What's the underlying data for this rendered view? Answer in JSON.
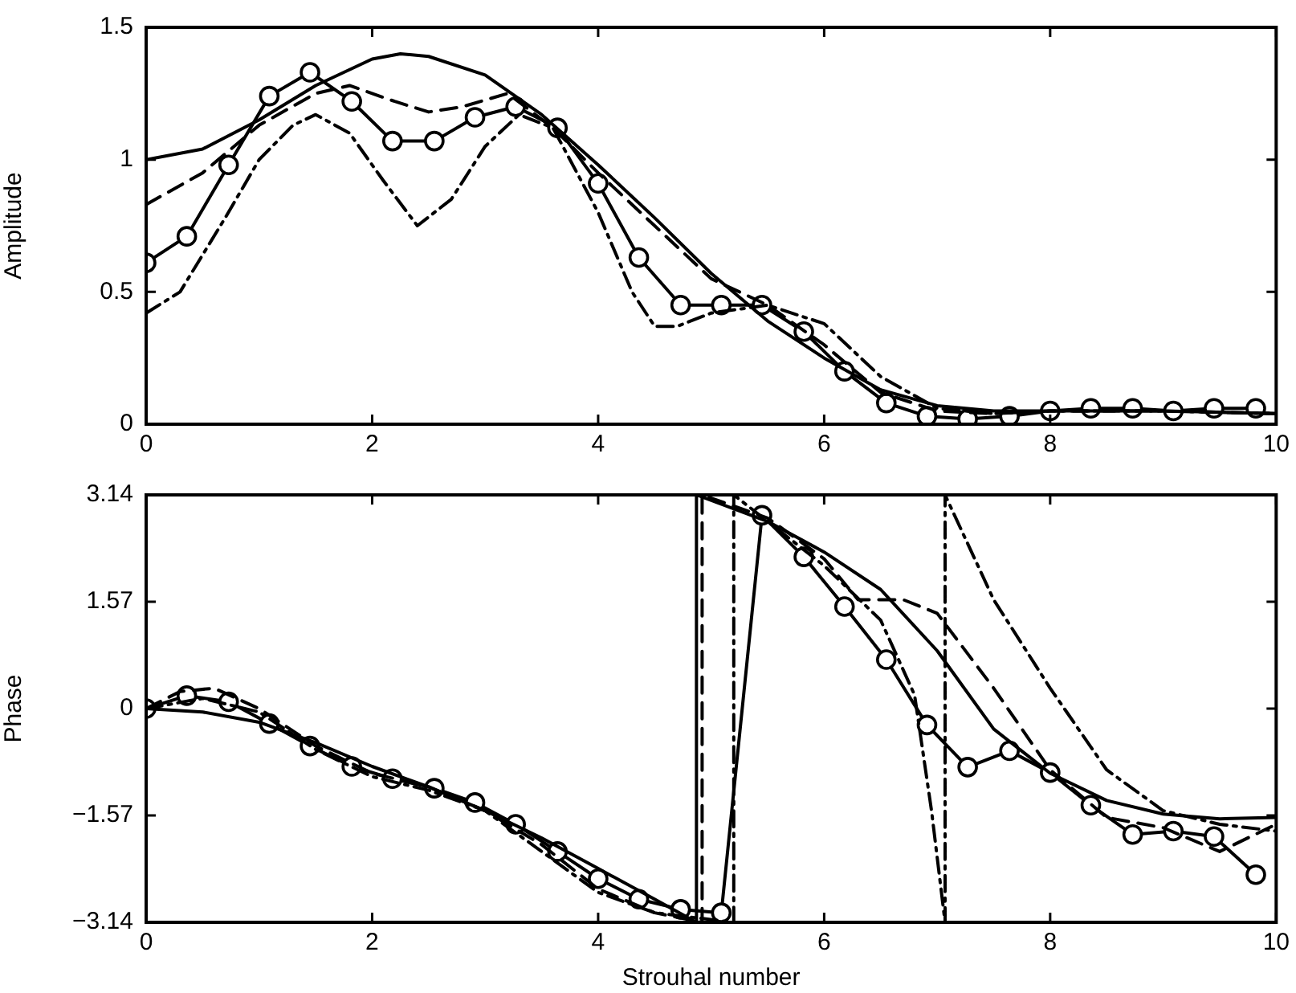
{
  "chart_data": [
    {
      "type": "line",
      "ylabel": "Amplitude",
      "xlim": [
        0,
        10
      ],
      "xticks": [
        0,
        2,
        4,
        6,
        8,
        10
      ],
      "ylim": [
        0,
        1.5
      ],
      "yticks": [
        0,
        0.5,
        1,
        1.5
      ],
      "grid": false,
      "legend": false,
      "series": [
        {
          "color": "#000000",
          "line_style": "solid",
          "marker": "none",
          "x": [
            0,
            0.5,
            1,
            1.5,
            2,
            2.25,
            2.5,
            3,
            3.5,
            4,
            4.5,
            5,
            5.5,
            6,
            6.5,
            7,
            7.5,
            8,
            9,
            10
          ],
          "values": [
            1.0,
            1.04,
            1.15,
            1.28,
            1.38,
            1.4,
            1.39,
            1.32,
            1.17,
            0.98,
            0.78,
            0.57,
            0.39,
            0.25,
            0.13,
            0.07,
            0.05,
            0.05,
            0.05,
            0.04
          ]
        },
        {
          "color": "#000000",
          "line_style": "dashed",
          "marker": "none",
          "x": [
            0,
            0.5,
            1,
            1.5,
            1.8,
            2.2,
            2.5,
            2.8,
            3.2,
            3.6,
            4,
            4.5,
            5,
            5.5,
            6,
            6.5,
            7,
            7.5,
            8,
            9,
            10
          ],
          "values": [
            0.83,
            0.95,
            1.13,
            1.25,
            1.28,
            1.22,
            1.18,
            1.2,
            1.25,
            1.12,
            0.95,
            0.75,
            0.55,
            0.45,
            0.3,
            0.12,
            0.05,
            0.04,
            0.05,
            0.05,
            0.04
          ]
        },
        {
          "color": "#000000",
          "line_style": "dashdot",
          "marker": "none",
          "x": [
            0,
            0.3,
            0.7,
            1,
            1.3,
            1.5,
            1.8,
            2.1,
            2.4,
            2.7,
            3,
            3.3,
            3.6,
            4,
            4.3,
            4.5,
            4.7,
            5,
            5.5,
            6,
            6.5,
            7,
            7.5,
            8,
            9,
            10
          ],
          "values": [
            0.42,
            0.5,
            0.78,
            1.0,
            1.13,
            1.17,
            1.1,
            0.92,
            0.75,
            0.85,
            1.05,
            1.17,
            1.12,
            0.8,
            0.5,
            0.37,
            0.37,
            0.42,
            0.45,
            0.38,
            0.18,
            0.06,
            0.04,
            0.05,
            0.05,
            0.04
          ]
        },
        {
          "color": "#000000",
          "line_style": "solid",
          "marker": "circle",
          "x": [
            0,
            0.36,
            0.73,
            1.09,
            1.45,
            1.82,
            2.18,
            2.55,
            2.91,
            3.27,
            3.64,
            4.0,
            4.36,
            4.73,
            5.09,
            5.45,
            5.82,
            6.18,
            6.55,
            6.91,
            7.27,
            7.64,
            8.0,
            8.36,
            8.73,
            9.09,
            9.45,
            9.82
          ],
          "values": [
            0.61,
            0.71,
            0.98,
            1.24,
            1.33,
            1.22,
            1.07,
            1.07,
            1.16,
            1.2,
            1.12,
            0.91,
            0.63,
            0.45,
            0.45,
            0.45,
            0.35,
            0.2,
            0.08,
            0.03,
            0.02,
            0.03,
            0.05,
            0.06,
            0.06,
            0.05,
            0.06,
            0.06
          ]
        }
      ]
    },
    {
      "type": "line",
      "xlabel": "Strouhal number",
      "ylabel": "Phase",
      "xlim": [
        0,
        10
      ],
      "xticks": [
        0,
        2,
        4,
        6,
        8,
        10
      ],
      "ylim": [
        -3.14,
        3.14
      ],
      "yticks": [
        {
          "value": -3.14,
          "label": "−3.14"
        },
        {
          "value": -1.57,
          "label": "−1.57"
        },
        0,
        1.57,
        3.14
      ],
      "grid": false,
      "legend": false,
      "series": [
        {
          "color": "#000000",
          "line_style": "solid",
          "marker": "none",
          "x": [
            0,
            0.5,
            1,
            1.5,
            2,
            2.5,
            3,
            3.5,
            4,
            4.5,
            4.87,
            4.87,
            5.5,
            6,
            6.5,
            7,
            7.5,
            8,
            8.5,
            9,
            9.5,
            10
          ],
          "values": [
            0,
            -0.05,
            -0.2,
            -0.5,
            -0.85,
            -1.15,
            -1.5,
            -1.9,
            -2.35,
            -2.8,
            -3.14,
            3.14,
            2.75,
            2.3,
            1.75,
            0.85,
            -0.3,
            -0.95,
            -1.35,
            -1.55,
            -1.62,
            -1.6
          ]
        },
        {
          "color": "#000000",
          "line_style": "dashed",
          "marker": "none",
          "x": [
            0,
            0.3,
            0.6,
            1,
            1.5,
            2,
            2.5,
            3,
            3.5,
            4,
            4.5,
            4.92,
            4.92,
            5.5,
            6,
            6.3,
            6.7,
            7,
            7.5,
            8,
            8.5,
            9,
            9.5,
            10
          ],
          "values": [
            0,
            0.25,
            0.3,
            0,
            -0.55,
            -0.95,
            -1.15,
            -1.5,
            -2.0,
            -2.65,
            -3.0,
            -3.14,
            3.14,
            2.8,
            2.2,
            1.6,
            1.6,
            1.4,
            0.3,
            -0.9,
            -1.6,
            -1.75,
            -2.1,
            -1.7
          ]
        },
        {
          "color": "#000000",
          "line_style": "dashdot",
          "marker": "none",
          "x": [
            0,
            0.5,
            1,
            1.5,
            2,
            2.5,
            3,
            3.5,
            4,
            4.5,
            5.2,
            5.2,
            5.5,
            6,
            6.5,
            6.8,
            6.95,
            7.07,
            7.07,
            7.5,
            8,
            8.5,
            9,
            9.5,
            10
          ],
          "values": [
            0,
            0.15,
            -0.05,
            -0.6,
            -1.0,
            -1.2,
            -1.5,
            -2.1,
            -2.7,
            -3.0,
            -3.14,
            3.14,
            2.75,
            2.1,
            1.3,
            0.2,
            -1.5,
            -3.14,
            3.14,
            1.6,
            0.3,
            -0.9,
            -1.5,
            -1.7,
            -1.8
          ]
        },
        {
          "color": "#000000",
          "line_style": "solid",
          "marker": "circle",
          "x": [
            0,
            0.36,
            0.73,
            1.09,
            1.45,
            1.82,
            2.18,
            2.55,
            2.91,
            3.27,
            3.64,
            4.0,
            4.36,
            4.73,
            5.09,
            5.45,
            5.82,
            6.18,
            6.55,
            6.91,
            7.27,
            7.64,
            8.0,
            8.36,
            8.73,
            9.09,
            9.45,
            9.82
          ],
          "values": [
            0,
            0.19,
            0.1,
            -0.22,
            -0.55,
            -0.85,
            -1.03,
            -1.17,
            -1.38,
            -1.7,
            -2.1,
            -2.5,
            -2.8,
            -2.95,
            -3.0,
            2.84,
            2.23,
            1.5,
            0.72,
            -0.24,
            -0.86,
            -0.62,
            -0.94,
            -1.42,
            -1.85,
            -1.8,
            -1.88,
            -2.44
          ]
        }
      ]
    }
  ]
}
